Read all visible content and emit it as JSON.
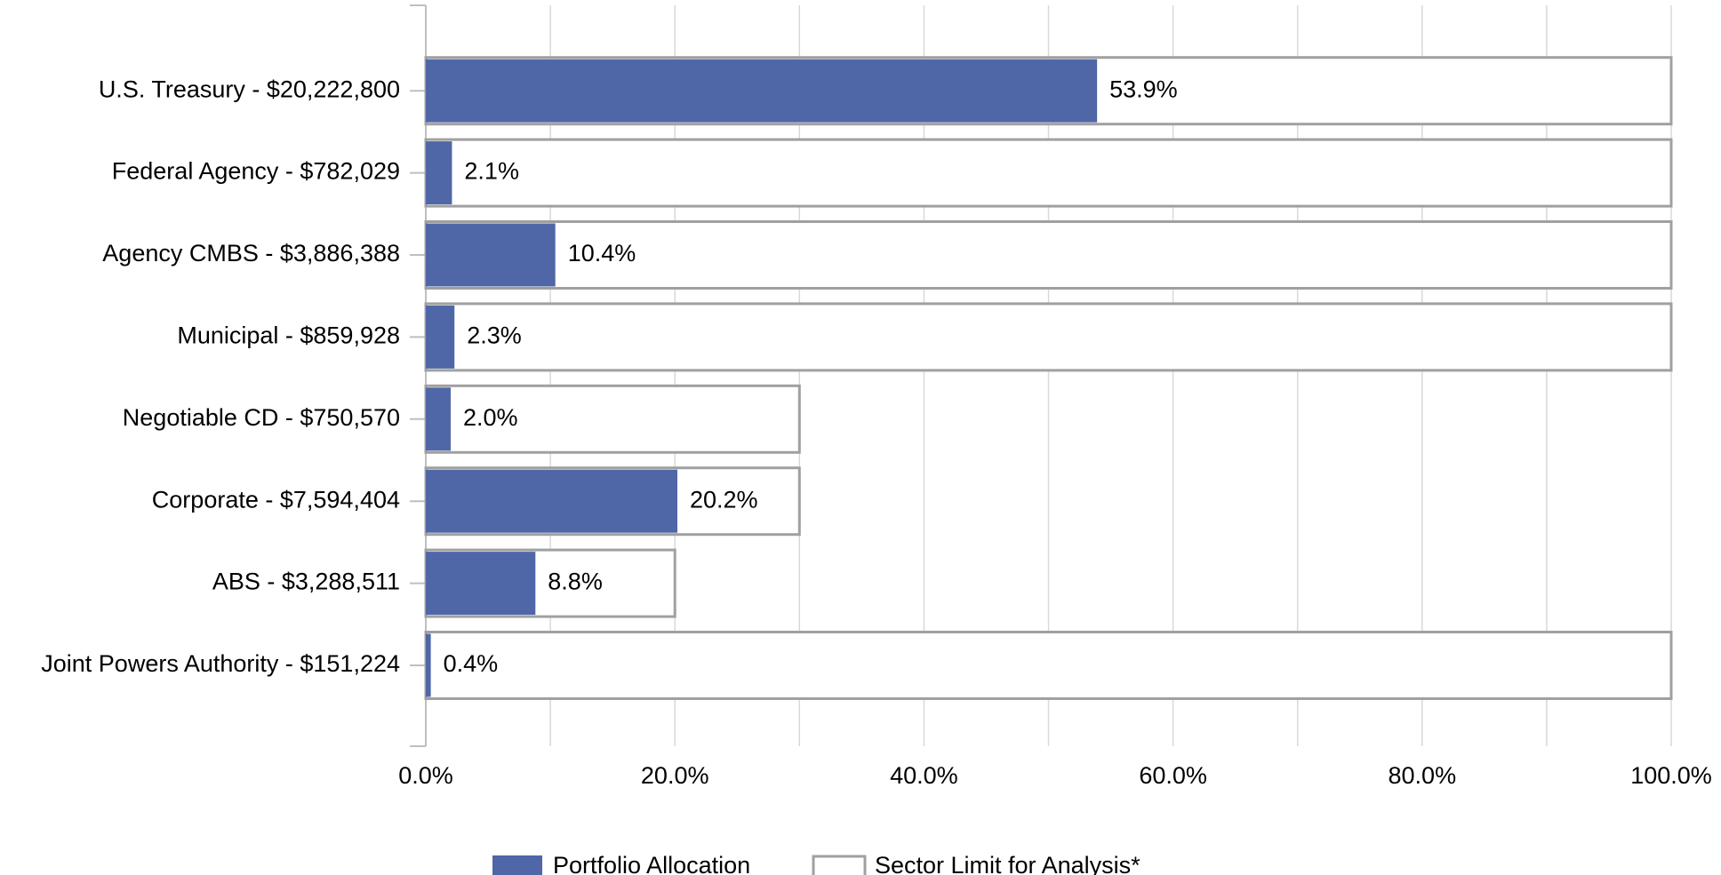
{
  "chart_data": {
    "type": "bar",
    "orientation": "horizontal",
    "categories": [
      "U.S. Treasury - $20,222,800",
      "Federal Agency - $782,029",
      "Agency CMBS - $3,886,388",
      "Municipal - $859,928",
      "Negotiable CD - $750,570",
      "Corporate - $7,594,404",
      "ABS - $3,288,511",
      "Joint Powers Authority - $151,224"
    ],
    "series": [
      {
        "name": "Portfolio Allocation",
        "color": "#4f67a6",
        "values": [
          53.9,
          2.1,
          10.4,
          2.3,
          2.0,
          20.2,
          8.8,
          0.4
        ],
        "value_labels": [
          "53.9%",
          "2.1%",
          "10.4%",
          "2.3%",
          "2.0%",
          "20.2%",
          "8.8%",
          "0.4%"
        ]
      },
      {
        "name": "Sector Limit for Analysis*",
        "color": "#a0a0a0",
        "values": [
          100,
          100,
          100,
          100,
          30,
          30,
          20,
          100
        ]
      }
    ],
    "xlim": [
      0,
      100
    ],
    "xticks": [
      {
        "value": 0,
        "label": "0.0%"
      },
      {
        "value": 20,
        "label": "20.0%"
      },
      {
        "value": 40,
        "label": "40.0%"
      },
      {
        "value": 60,
        "label": "60.0%"
      },
      {
        "value": 80,
        "label": "80.0%"
      },
      {
        "value": 100,
        "label": "100.0%"
      }
    ],
    "xminorticks": [
      10,
      30,
      50,
      70,
      90
    ],
    "grid": true,
    "legend": "bottom"
  }
}
